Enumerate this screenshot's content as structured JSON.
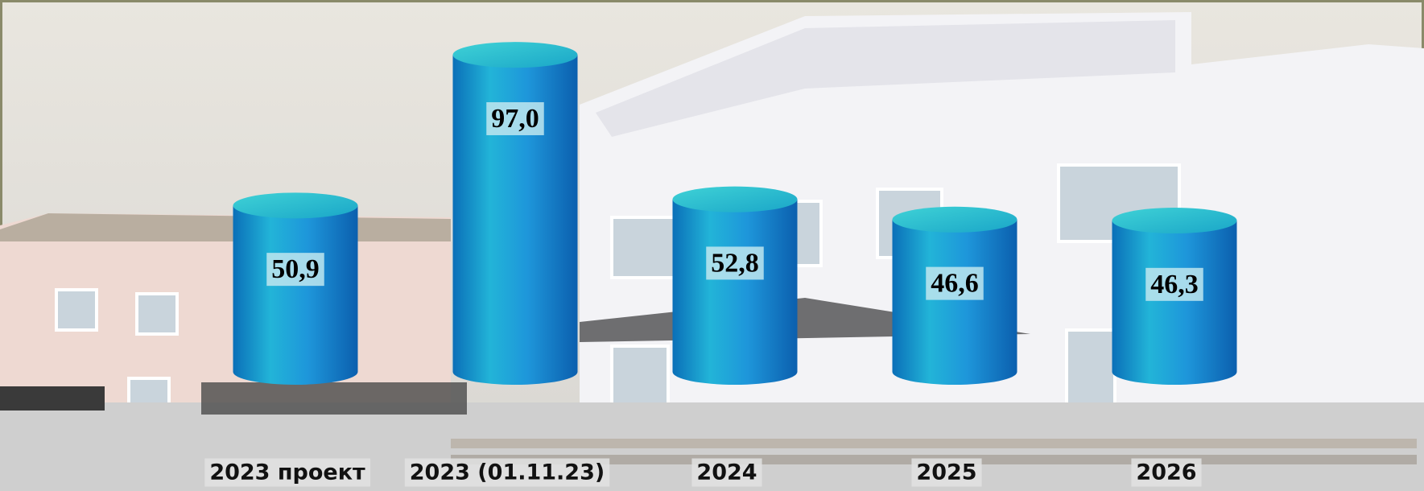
{
  "chart_data": {
    "type": "cylinder-bar",
    "categories": [
      "2023 проект",
      "2023 (01.11.23)",
      "2024",
      "2025",
      "2026"
    ],
    "values": [
      50.9,
      97.0,
      52.8,
      46.6,
      46.3
    ],
    "value_labels": [
      "50,9",
      "97,0",
      "52,8",
      "46,6",
      "46,3"
    ],
    "color": "#1a8fd6",
    "ylim": [
      0,
      100
    ]
  }
}
